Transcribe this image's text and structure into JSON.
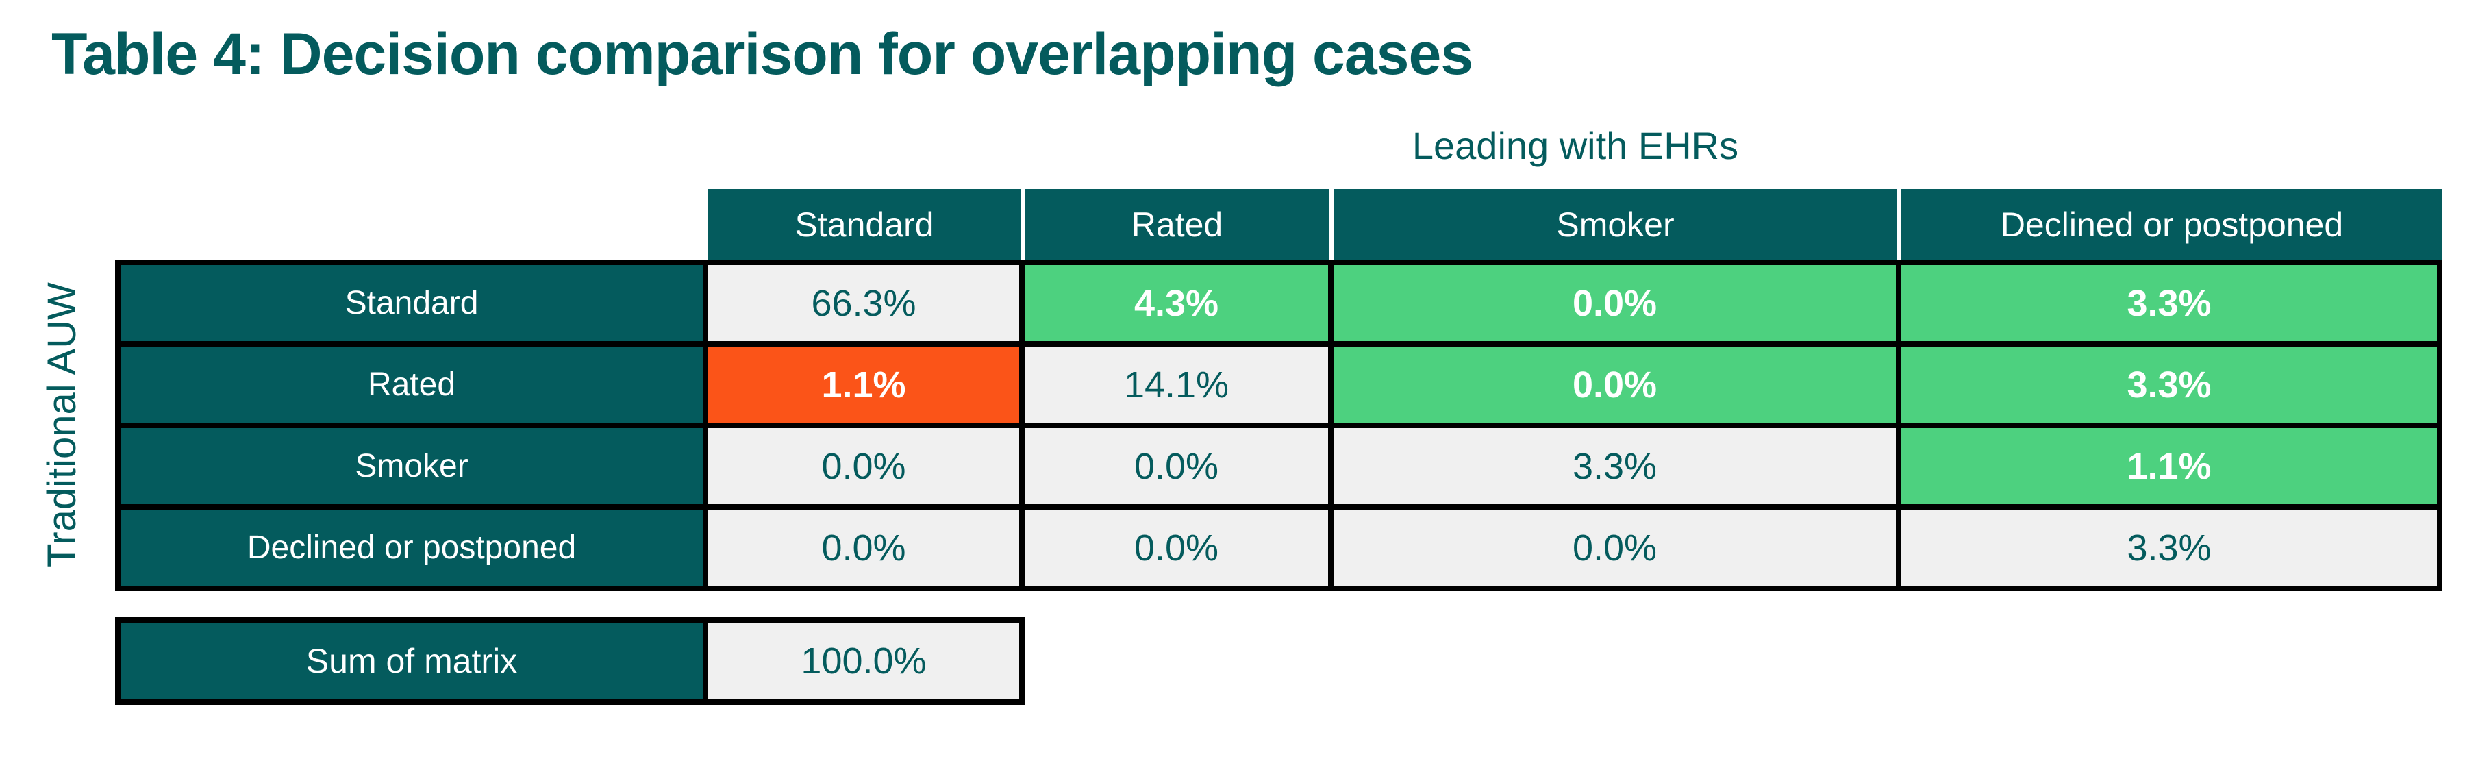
{
  "title": "Table 4: Decision comparison for overlapping cases",
  "axes": {
    "column_group": "Leading with EHRs",
    "row_group": "Traditional AUW"
  },
  "columns": [
    "Standard",
    "Rated",
    "Smoker",
    "Declined or postponed"
  ],
  "rows": [
    {
      "label": "Standard",
      "cells": [
        {
          "value": "66.3%",
          "style": "neutral"
        },
        {
          "value": "4.3%",
          "style": "green"
        },
        {
          "value": "0.0%",
          "style": "green"
        },
        {
          "value": "3.3%",
          "style": "green"
        }
      ]
    },
    {
      "label": "Rated",
      "cells": [
        {
          "value": "1.1%",
          "style": "orange"
        },
        {
          "value": "14.1%",
          "style": "neutral"
        },
        {
          "value": "0.0%",
          "style": "green"
        },
        {
          "value": "3.3%",
          "style": "green"
        }
      ]
    },
    {
      "label": "Smoker",
      "cells": [
        {
          "value": "0.0%",
          "style": "neutral"
        },
        {
          "value": "0.0%",
          "style": "neutral"
        },
        {
          "value": "3.3%",
          "style": "neutral"
        },
        {
          "value": "1.1%",
          "style": "green"
        }
      ]
    },
    {
      "label": "Declined or postponed",
      "cells": [
        {
          "value": "0.0%",
          "style": "neutral"
        },
        {
          "value": "0.0%",
          "style": "neutral"
        },
        {
          "value": "0.0%",
          "style": "neutral"
        },
        {
          "value": "3.3%",
          "style": "neutral"
        }
      ]
    }
  ],
  "summary": {
    "label": "Sum of matrix",
    "value": "100.0%"
  },
  "colors": {
    "teal": "#045b5d",
    "green": "#4dd17f",
    "orange": "#fb5418",
    "neutral_cell": "#f0f0f0",
    "border": "#000000",
    "header_text": "#ffffff"
  },
  "chart_data": {
    "type": "heatmap",
    "title": "Table 4: Decision comparison for overlapping cases",
    "row_axis_label": "Traditional AUW",
    "column_axis_label": "Leading with EHRs",
    "row_categories": [
      "Standard",
      "Rated",
      "Smoker",
      "Declined or postponed"
    ],
    "column_categories": [
      "Standard",
      "Rated",
      "Smoker",
      "Declined or postponed"
    ],
    "values_percent": [
      [
        66.3,
        4.3,
        0.0,
        3.3
      ],
      [
        1.1,
        14.1,
        0.0,
        3.3
      ],
      [
        0.0,
        0.0,
        3.3,
        1.1
      ],
      [
        0.0,
        0.0,
        0.0,
        3.3
      ]
    ],
    "cell_styles": [
      [
        "neutral",
        "green",
        "green",
        "green"
      ],
      [
        "orange",
        "neutral",
        "green",
        "green"
      ],
      [
        "neutral",
        "neutral",
        "neutral",
        "green"
      ],
      [
        "neutral",
        "neutral",
        "neutral",
        "neutral"
      ]
    ],
    "sum_of_matrix_percent": 100.0,
    "legend_position": "none",
    "grid": "thick black cell borders; diagonal = agreement cells in gray"
  }
}
